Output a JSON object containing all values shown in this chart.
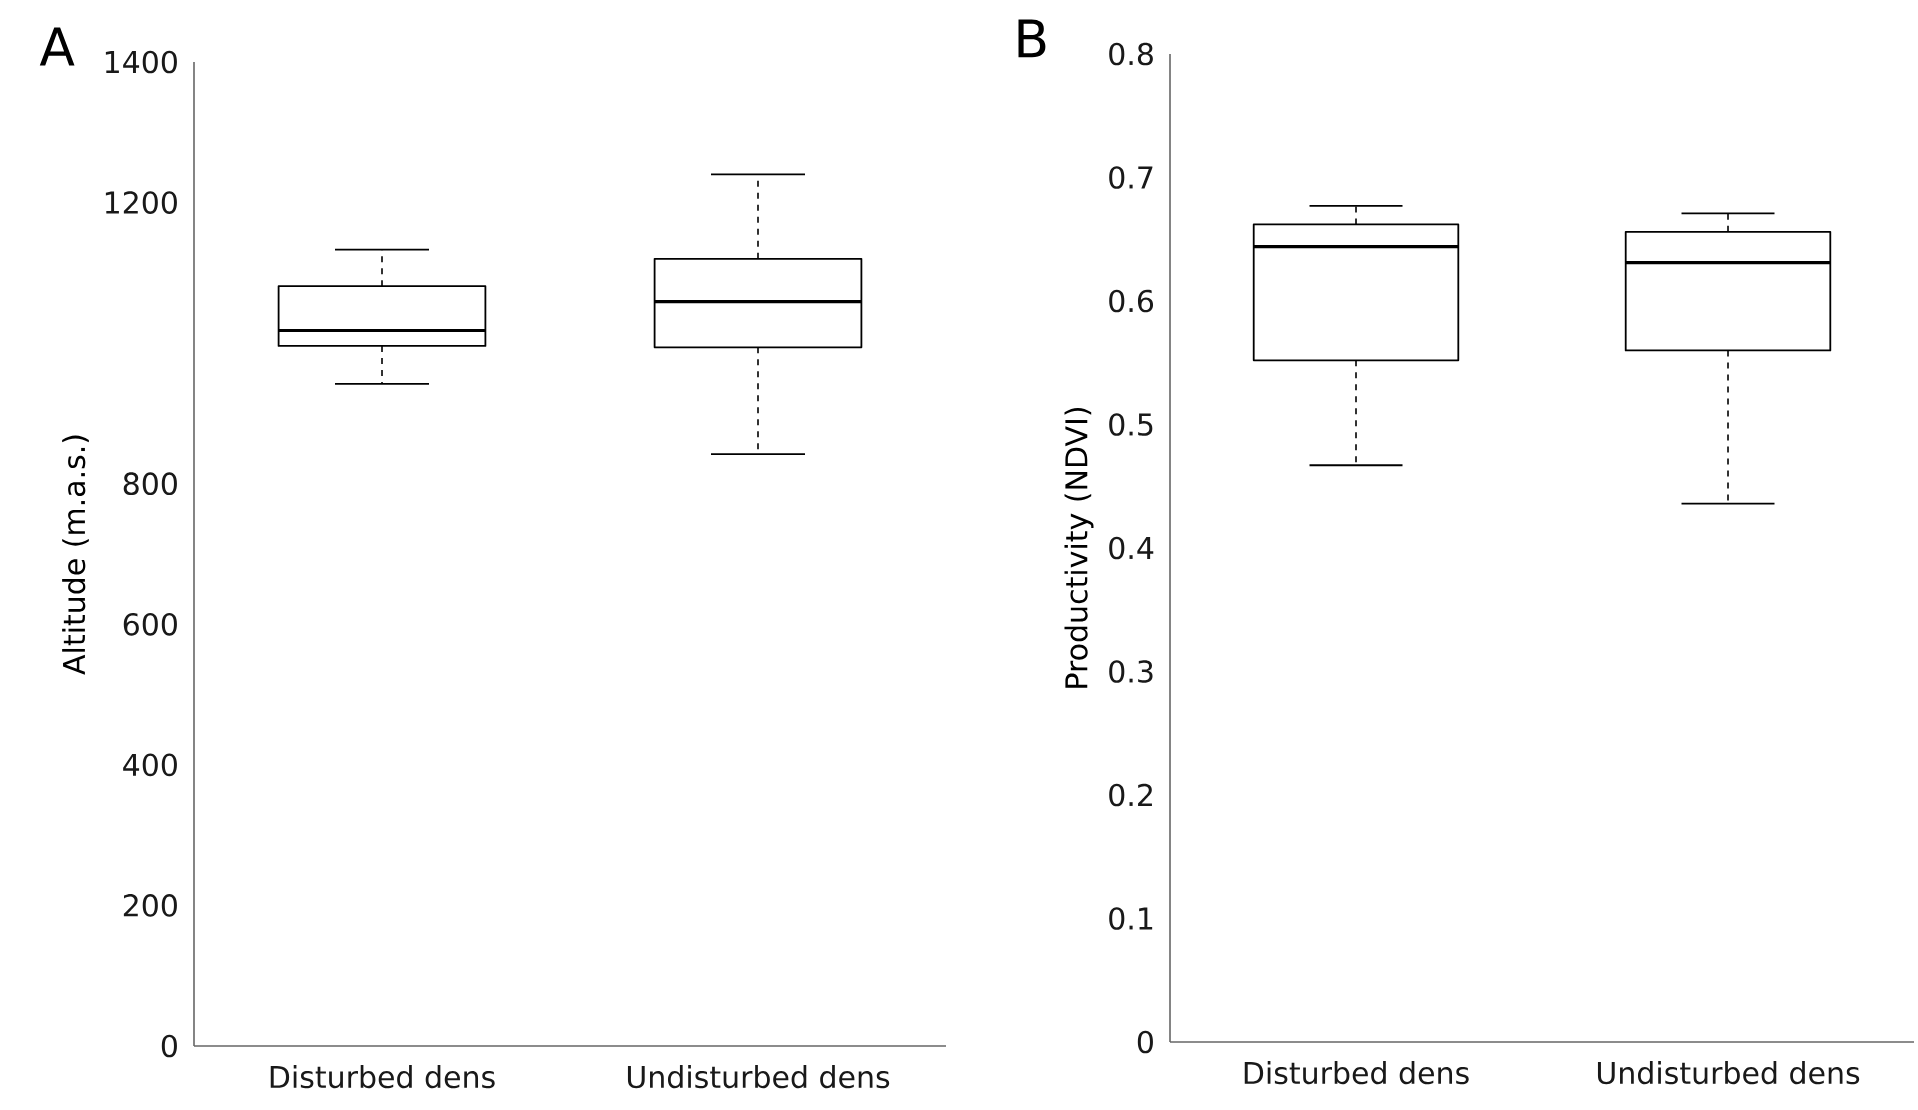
{
  "chart_data": [
    {
      "type": "box",
      "title": "A",
      "ylabel": "Altitude (m.a.s.)",
      "categories": [
        "Disturbed dens",
        "Undisturbed dens"
      ],
      "boxes": [
        {
          "low": 942,
          "q1": 996,
          "median": 1018,
          "q3": 1081,
          "high": 1133
        },
        {
          "low": 842,
          "q1": 994,
          "median": 1059,
          "q3": 1120,
          "high": 1240
        }
      ],
      "ylim": [
        0,
        1400
      ],
      "yticks": [
        0,
        200,
        400,
        600,
        800,
        1200,
        1400
      ]
    },
    {
      "type": "box",
      "title": "B",
      "ylabel": "Productivity (NDVI)",
      "categories": [
        "Disturbed dens",
        "Undisturbed dens"
      ],
      "boxes": [
        {
          "low": 0.467,
          "q1": 0.552,
          "median": 0.644,
          "q3": 0.662,
          "high": 0.677
        },
        {
          "low": 0.436,
          "q1": 0.56,
          "median": 0.631,
          "q3": 0.656,
          "high": 0.671
        }
      ],
      "ylim": [
        0,
        0.8
      ],
      "yticks": [
        0,
        0.1,
        0.2,
        0.3,
        0.4,
        0.5,
        0.6,
        0.7,
        0.8
      ]
    }
  ]
}
